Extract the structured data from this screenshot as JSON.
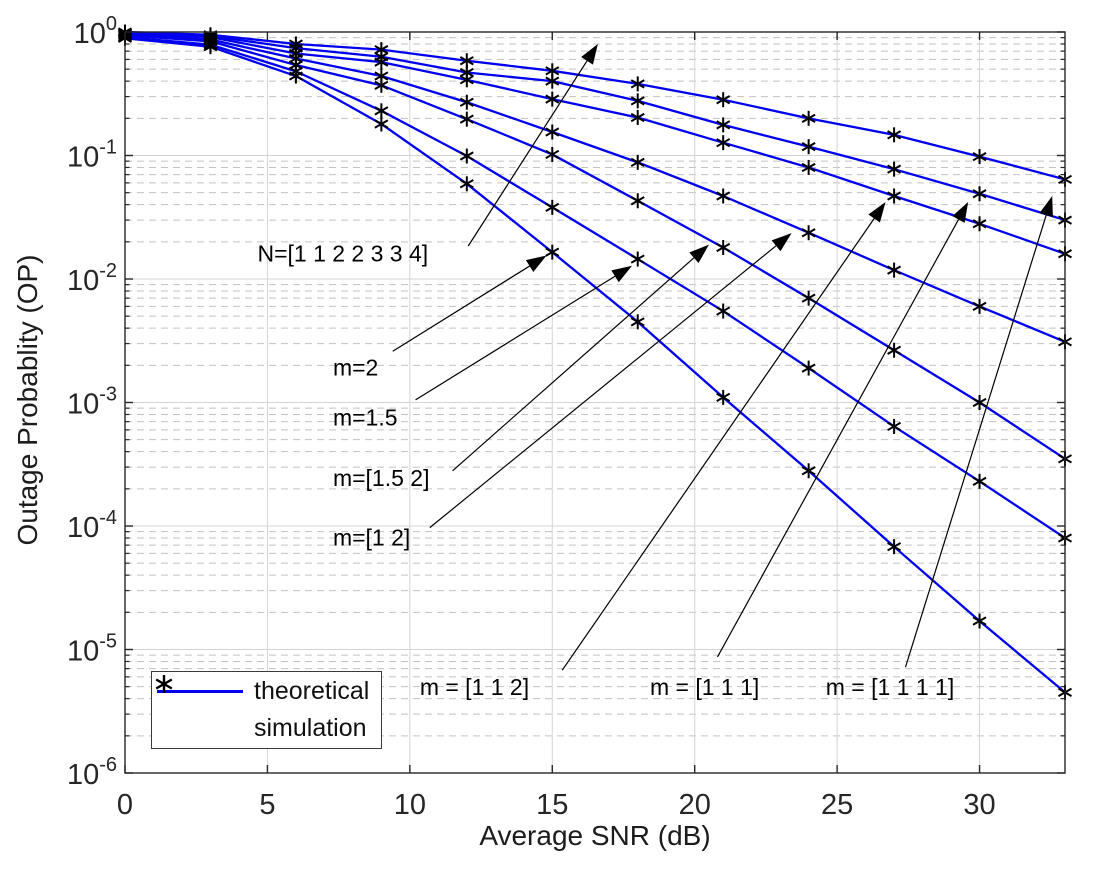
{
  "chart_data": {
    "type": "line",
    "title": "",
    "xlabel": "Average SNR (dB)",
    "ylabel": "Outage Probablity (OP)",
    "xlim": [
      0,
      33
    ],
    "ylim": [
      1e-06,
      1
    ],
    "y_scale": "log",
    "x_ticks": [
      0,
      5,
      10,
      15,
      20,
      25,
      30
    ],
    "y_tick_exponents": [
      0,
      -1,
      -2,
      -3,
      -4,
      -5,
      -6
    ],
    "grid": {
      "major": true,
      "minor_dashed": true
    },
    "colors": {
      "line": "#0000ee",
      "marker": "#000000",
      "grid_major": "#d4d4d4",
      "grid_minor": "#c3c3c3",
      "axis": "#262626",
      "text": "#1c1c1c",
      "annotation": "#000000"
    },
    "legend": {
      "position": "southwest",
      "entries": [
        {
          "label": "theoretical",
          "sample": "line"
        },
        {
          "label": "simulation",
          "sample": "asterisk"
        }
      ]
    },
    "x": [
      0,
      3,
      6,
      9,
      12,
      15,
      18,
      21,
      24,
      27,
      30,
      33
    ],
    "series": [
      {
        "name": "m = [1 1 1 1]",
        "values": [
          1.0,
          0.95,
          0.8,
          0.72,
          0.585,
          0.485,
          0.38,
          0.283,
          0.2,
          0.147,
          0.098,
          0.064
        ]
      },
      {
        "name": "m = [1 1 1]",
        "values": [
          0.99,
          0.93,
          0.74,
          0.63,
          0.47,
          0.4,
          0.277,
          0.177,
          0.118,
          0.0775,
          0.049,
          0.03
        ]
      },
      {
        "name": "m = [1 1 2]",
        "values": [
          0.98,
          0.91,
          0.67,
          0.57,
          0.41,
          0.286,
          0.203,
          0.127,
          0.08,
          0.047,
          0.028,
          0.016
        ]
      },
      {
        "name": "m=[1 2]",
        "values": [
          0.96,
          0.87,
          0.61,
          0.44,
          0.27,
          0.155,
          0.088,
          0.047,
          0.0237,
          0.0118,
          0.006,
          0.0031
        ]
      },
      {
        "name": "m=[1.5 2]",
        "values": [
          0.94,
          0.84,
          0.54,
          0.37,
          0.197,
          0.102,
          0.043,
          0.018,
          0.007,
          0.00265,
          0.001,
          0.00035
        ]
      },
      {
        "name": "m=1.5",
        "values": [
          0.91,
          0.79,
          0.48,
          0.23,
          0.099,
          0.038,
          0.0145,
          0.0055,
          0.0019,
          0.00064,
          0.00023,
          8e-05
        ]
      },
      {
        "name": "m=2",
        "values": [
          0.89,
          0.76,
          0.44,
          0.18,
          0.059,
          0.0165,
          0.0045,
          0.0011,
          0.00028,
          6.8e-05,
          1.7e-05,
          4.5e-06
        ]
      }
    ],
    "annotations": [
      {
        "text": "N=[1 1 2 2 3 3 4]",
        "tx": 4.65,
        "ty": 0.0155,
        "fx": 12.05,
        "fy": 0.0185,
        "hx": 16.6,
        "hy": 0.8
      },
      {
        "text": "m=2",
        "tx": 7.3,
        "ty": 0.00185,
        "fx": 9.4,
        "fy": 0.0026,
        "hx": 14.8,
        "hy": 0.0155
      },
      {
        "text": "m=1.5",
        "tx": 7.3,
        "ty": 0.00073,
        "fx": 10.2,
        "fy": 0.00105,
        "hx": 17.8,
        "hy": 0.0128
      },
      {
        "text": "m=[1.5 2]",
        "tx": 7.3,
        "ty": 0.000237,
        "fx": 11.5,
        "fy": 0.00028,
        "hx": 20.5,
        "hy": 0.019
      },
      {
        "text": "m=[1 2]",
        "tx": 7.3,
        "ty": 7.75e-05,
        "fx": 10.7,
        "fy": 9.7e-05,
        "hx": 23.4,
        "hy": 0.0235
      },
      {
        "text": "m = [1 1 2]",
        "tx": 10.35,
        "ty": 4.8e-06,
        "fx": 15.35,
        "fy": 6.8e-06,
        "hx": 26.7,
        "hy": 0.042
      },
      {
        "text": "m = [1 1 1]",
        "tx": 18.43,
        "ty": 4.8e-06,
        "fx": 20.8,
        "fy": 8.7e-06,
        "hx": 29.6,
        "hy": 0.042
      },
      {
        "text": "m = [1 1 1 1]",
        "tx": 24.6,
        "ty": 4.8e-06,
        "fx": 27.4,
        "fy": 7.2e-06,
        "hx": 32.55,
        "hy": 0.047
      }
    ]
  }
}
